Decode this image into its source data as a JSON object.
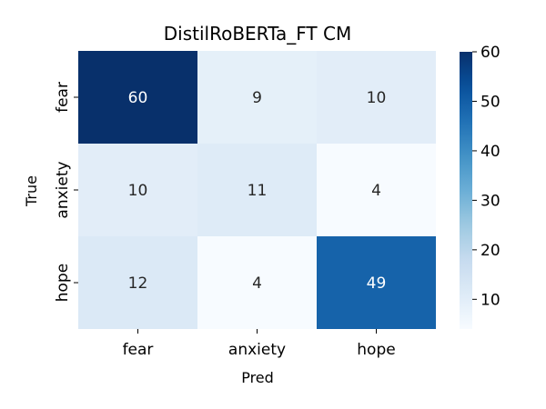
{
  "chart_data": {
    "type": "heatmap",
    "title": "DistilRoBERTa_FT CM",
    "xlabel": "Pred",
    "ylabel": "True",
    "x_categories": [
      "fear",
      "anxiety",
      "hope"
    ],
    "y_categories": [
      "fear",
      "anxiety",
      "hope"
    ],
    "values": [
      [
        60,
        9,
        10
      ],
      [
        10,
        11,
        4
      ],
      [
        12,
        4,
        49
      ]
    ],
    "colorbar": {
      "min": 4,
      "max": 60,
      "ticks": [
        10,
        20,
        30,
        40,
        50,
        60
      ],
      "colormap": "Blues"
    },
    "colors": {
      "text_dark": "#262626",
      "text_light": "#ffffff"
    }
  }
}
